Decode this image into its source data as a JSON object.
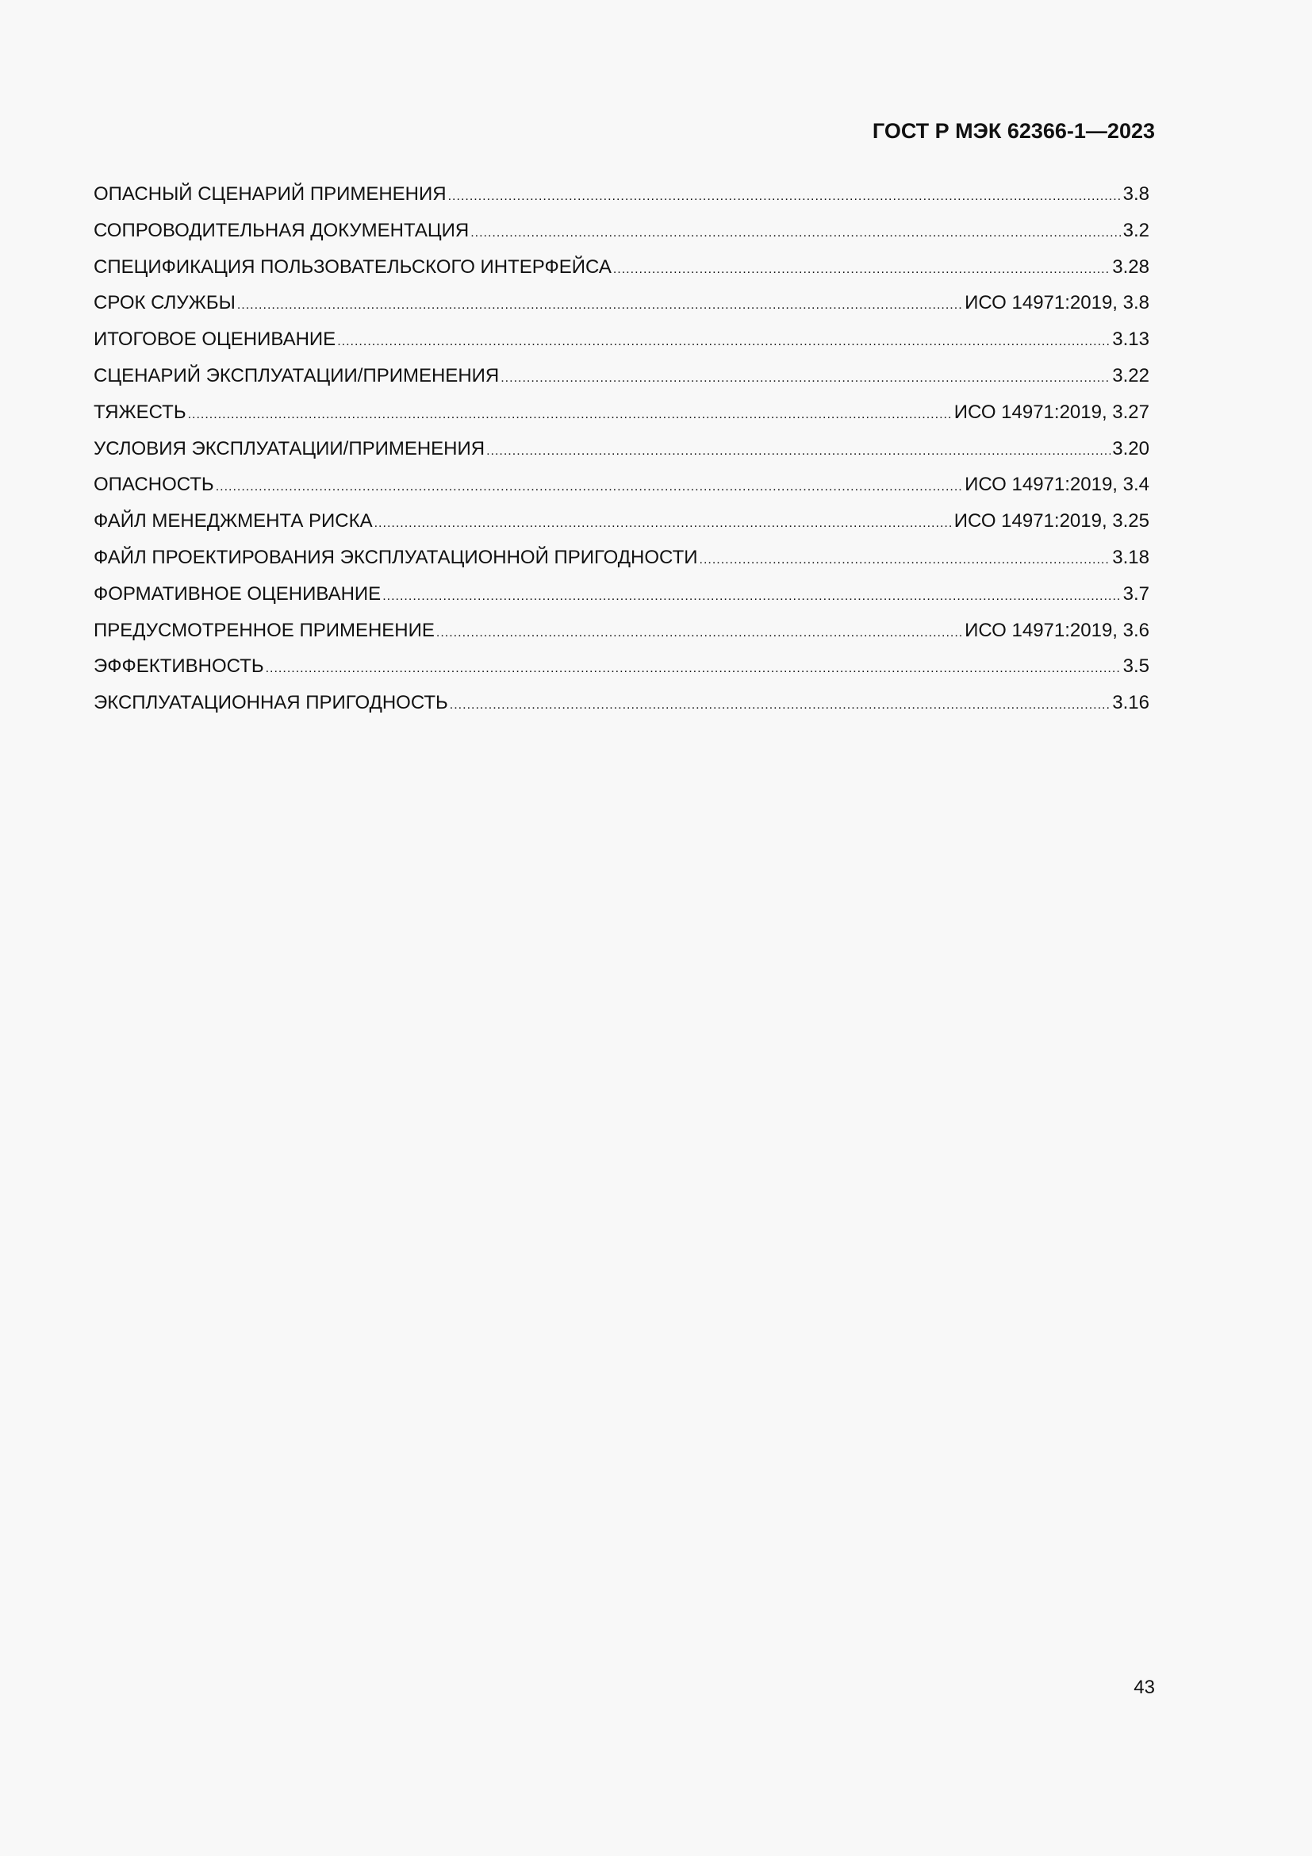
{
  "header": {
    "title": "ГОСТ Р МЭК 62366-1—2023"
  },
  "index": [
    {
      "term": "ОПАСНЫЙ СЦЕНАРИЙ ПРИМЕНЕНИЯ",
      "ref": "3.8"
    },
    {
      "term": "СОПРОВОДИТЕЛЬНАЯ ДОКУМЕНТАЦИЯ",
      "ref": "3.2"
    },
    {
      "term": "СПЕЦИФИКАЦИЯ ПОЛЬЗОВАТЕЛЬСКОГО ИНТЕРФЕЙСА",
      "ref": "3.28"
    },
    {
      "term": "СРОК СЛУЖБЫ",
      "ref": "ИСО 14971:2019, 3.8"
    },
    {
      "term": "ИТОГОВОЕ ОЦЕНИВАНИЕ",
      "ref": "3.13"
    },
    {
      "term": "СЦЕНАРИЙ ЭКСПЛУАТАЦИИ/ПРИМЕНЕНИЯ",
      "ref": "3.22"
    },
    {
      "term": "ТЯЖЕСТЬ",
      "ref": "ИСО 14971:2019, 3.27"
    },
    {
      "term": "УСЛОВИЯ ЭКСПЛУАТАЦИИ/ПРИМЕНЕНИЯ",
      "ref": "3.20"
    },
    {
      "term": "ОПАСНОСТЬ",
      "ref": "ИСО 14971:2019, 3.4"
    },
    {
      "term": "ФАЙЛ МЕНЕДЖМЕНТА РИСКА",
      "ref": "ИСО 14971:2019, 3.25"
    },
    {
      "term": "ФАЙЛ ПРОЕКТИРОВАНИЯ ЭКСПЛУАТАЦИОННОЙ ПРИГОДНОСТИ",
      "ref": "3.18"
    },
    {
      "term": "ФОРМАТИВНОЕ ОЦЕНИВАНИЕ",
      "ref": "3.7"
    },
    {
      "term": "ПРЕДУСМОТРЕННОЕ ПРИМЕНЕНИЕ",
      "ref": "ИСО 14971:2019, 3.6"
    },
    {
      "term": "ЭФФЕКТИВНОСТЬ",
      "ref": "3.5"
    },
    {
      "term": "ЭКСПЛУАТАЦИОННАЯ ПРИГОДНОСТЬ",
      "ref": "3.16"
    }
  ],
  "footer": {
    "page_number": "43"
  }
}
